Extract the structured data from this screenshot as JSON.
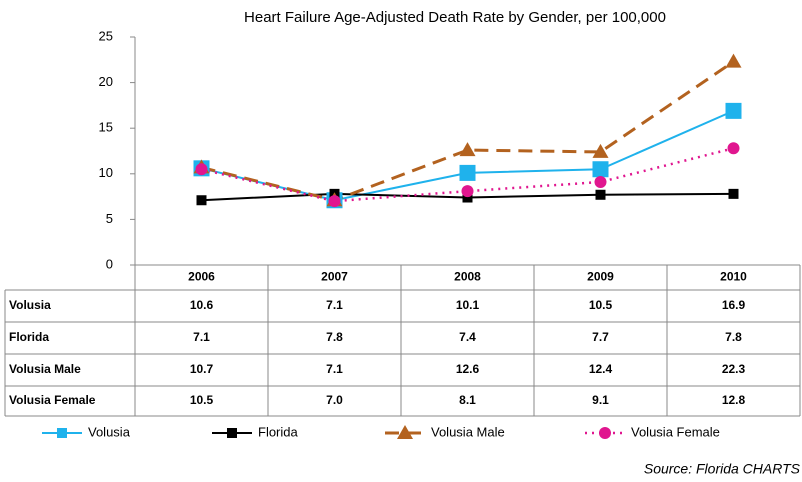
{
  "chart_data": {
    "type": "line",
    "title": "Heart Failure Age-Adjusted Death Rate by Gender, per 100,000",
    "categories": [
      "2006",
      "2007",
      "2008",
      "2009",
      "2010"
    ],
    "series": [
      {
        "name": "Volusia",
        "color": "#1fb2ec",
        "values": [
          10.6,
          7.1,
          10.1,
          10.5,
          16.9
        ]
      },
      {
        "name": "Florida",
        "color": "#000000",
        "values": [
          7.1,
          7.8,
          7.4,
          7.7,
          7.8
        ]
      },
      {
        "name": "Volusia Male",
        "color": "#b3621f",
        "values": [
          10.7,
          7.1,
          12.6,
          12.4,
          22.3
        ]
      },
      {
        "name": "Volusia Female",
        "color": "#e0168f",
        "values": [
          10.5,
          7.0,
          8.1,
          9.1,
          12.8
        ],
        "value_labels": [
          "10.5",
          "7.0",
          "8.1",
          "9.1",
          "12.8"
        ]
      }
    ],
    "ylim": [
      0,
      25
    ],
    "yticks": [
      0,
      5,
      10,
      15,
      20,
      25
    ],
    "grid": false,
    "source": "Source:  Florida CHARTS"
  }
}
